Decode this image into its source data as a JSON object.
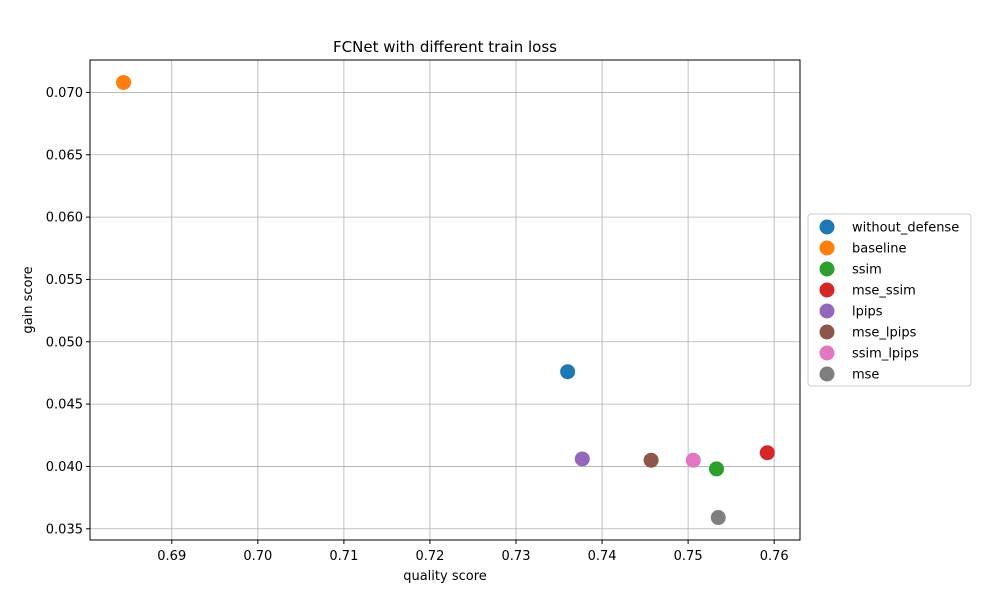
{
  "chart_data": {
    "type": "scatter",
    "title": "FCNet with different train loss",
    "xlabel": "quality score",
    "ylabel": "gain score",
    "xlim": [
      0.6805,
      0.763
    ],
    "ylim": [
      0.0341,
      0.0726
    ],
    "xticks": [
      "0.69",
      "0.70",
      "0.71",
      "0.72",
      "0.73",
      "0.74",
      "0.75",
      "0.76"
    ],
    "xtick_values": [
      0.69,
      0.7,
      0.71,
      0.72,
      0.73,
      0.74,
      0.75,
      0.76
    ],
    "yticks": [
      "0.035",
      "0.040",
      "0.045",
      "0.050",
      "0.055",
      "0.060",
      "0.065",
      "0.070"
    ],
    "ytick_values": [
      0.035,
      0.04,
      0.045,
      0.05,
      0.055,
      0.06,
      0.065,
      0.07
    ],
    "grid": true,
    "legend_position": "center-right-outside",
    "series": [
      {
        "name": "without_defense",
        "color": "#1f77b4",
        "x": 0.736,
        "y": 0.0476
      },
      {
        "name": "baseline",
        "color": "#ff7f0e",
        "x": 0.6844,
        "y": 0.0708
      },
      {
        "name": "ssim",
        "color": "#2ca02c",
        "x": 0.7533,
        "y": 0.0398
      },
      {
        "name": "mse_ssim",
        "color": "#d62728",
        "x": 0.7592,
        "y": 0.0411
      },
      {
        "name": "lpips",
        "color": "#9467bd",
        "x": 0.7377,
        "y": 0.0406
      },
      {
        "name": "mse_lpips",
        "color": "#8c564b",
        "x": 0.7457,
        "y": 0.0405
      },
      {
        "name": "ssim_lpips",
        "color": "#e377c2",
        "x": 0.7506,
        "y": 0.0405
      },
      {
        "name": "mse",
        "color": "#7f7f7f",
        "x": 0.7535,
        "y": 0.0359
      }
    ]
  }
}
